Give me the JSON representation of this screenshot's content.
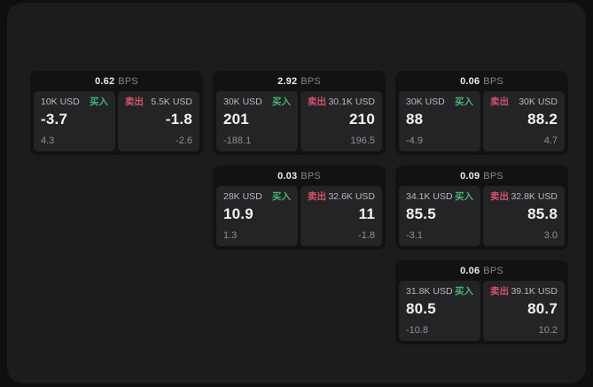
{
  "labels": {
    "bps_unit": "BPS",
    "buy": "买入",
    "sell": "卖出"
  },
  "colors": {
    "buy_accent": "#46b374",
    "sell_accent": "#d5536b",
    "panel_bg": "#1c1c1e",
    "card_bg": "#121214",
    "subcard_bg": "#242427"
  },
  "cards": [
    {
      "bps": "0.62",
      "buy": {
        "amount": "10K USD",
        "price": "-3.7",
        "change": "4.3"
      },
      "sell": {
        "amount": "5.5K USD",
        "price": "-1.8",
        "change": "-2.6"
      }
    },
    {
      "bps": "2.92",
      "buy": {
        "amount": "30K USD",
        "price": "201",
        "change": "-188.1"
      },
      "sell": {
        "amount": "30.1K USD",
        "price": "210",
        "change": "196.5"
      }
    },
    {
      "bps": "0.06",
      "buy": {
        "amount": "30K USD",
        "price": "88",
        "change": "-4.9"
      },
      "sell": {
        "amount": "30K USD",
        "price": "88.2",
        "change": "4.7"
      }
    },
    {
      "bps": "0.03",
      "buy": {
        "amount": "28K USD",
        "price": "10.9",
        "change": "1.3"
      },
      "sell": {
        "amount": "32.6K USD",
        "price": "11",
        "change": "-1.8"
      }
    },
    {
      "bps": "0.09",
      "buy": {
        "amount": "34.1K USD",
        "price": "85.5",
        "change": "-3.1"
      },
      "sell": {
        "amount": "32.8K USD",
        "price": "85.8",
        "change": "3.0"
      }
    },
    {
      "bps": "0.06",
      "buy": {
        "amount": "31.8K USD",
        "price": "80.5",
        "change": "-10.8"
      },
      "sell": {
        "amount": "39.1K USD",
        "price": "80.7",
        "change": "10.2"
      }
    }
  ]
}
